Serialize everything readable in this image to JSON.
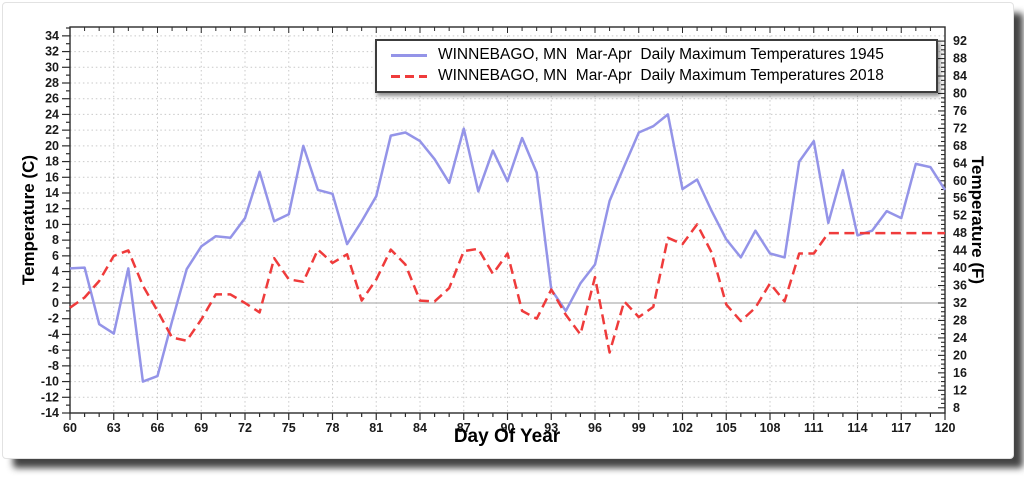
{
  "chart_data": {
    "type": "line",
    "title": "",
    "xlabel": "Day Of Year",
    "ylabel_left": "Temperature (C)",
    "ylabel_right": "Temperature (F)",
    "xlim": [
      60,
      120
    ],
    "ylim_c": [
      -14,
      35.1
    ],
    "x_ticks": [
      60,
      63,
      66,
      69,
      72,
      75,
      78,
      81,
      84,
      87,
      90,
      93,
      96,
      99,
      102,
      105,
      108,
      111,
      114,
      117,
      120
    ],
    "y_ticks_c": [
      -14,
      -12,
      -10,
      -8,
      -6,
      -4,
      -2,
      0,
      2,
      4,
      6,
      8,
      10,
      12,
      14,
      16,
      18,
      20,
      22,
      24,
      26,
      28,
      30,
      32,
      34
    ],
    "y_ticks_f": [
      8,
      12,
      16,
      20,
      24,
      28,
      32,
      36,
      40,
      44,
      48,
      52,
      56,
      60,
      64,
      68,
      72,
      76,
      80,
      84,
      88,
      92
    ],
    "grid": "dotted",
    "zero_line_c": 0,
    "legend_position": "top-center",
    "x": [
      60,
      61,
      62,
      63,
      64,
      65,
      66,
      67,
      68,
      69,
      70,
      71,
      72,
      73,
      74,
      75,
      76,
      77,
      78,
      79,
      80,
      81,
      82,
      83,
      84,
      85,
      86,
      87,
      88,
      89,
      90,
      91,
      92,
      93,
      94,
      95,
      96,
      97,
      98,
      99,
      100,
      101,
      102,
      103,
      104,
      105,
      106,
      107,
      108,
      109,
      110,
      111,
      112,
      113,
      114,
      115,
      116,
      117,
      118,
      119,
      120
    ],
    "series": [
      {
        "name": "WINNEBAGO, MN  Mar-Apr  Daily Maximum Temperatures 1945",
        "color": "#9494e8",
        "style": "solid",
        "values": [
          4.4,
          4.5,
          -2.7,
          -3.9,
          4.4,
          -10,
          -9.3,
          -2.3,
          4.3,
          7.2,
          8.5,
          8.3,
          10.8,
          16.7,
          10.4,
          11.3,
          20,
          14.4,
          13.9,
          7.5,
          10.4,
          13.6,
          21.3,
          21.7,
          20.6,
          18.3,
          15.3,
          22.2,
          14.2,
          19.4,
          15.5,
          21,
          16.6,
          1.7,
          -1,
          2.5,
          4.9,
          13,
          17.4,
          21.7,
          22.5,
          24,
          14.5,
          15.7,
          11.7,
          8.1,
          5.8,
          9.2,
          6.3,
          5.8,
          18,
          20.6,
          10.2,
          16.9,
          8.6,
          9.2,
          11.7,
          10.8,
          17.7,
          17.3,
          14.4
        ]
      },
      {
        "name": "WINNEBAGO, MN  Mar-Apr  Daily Maximum Temperatures 2018",
        "color": "#ef3b3b",
        "style": "dashed",
        "values": [
          -0.6,
          0.7,
          2.8,
          6,
          6.7,
          2.2,
          -1,
          -4.4,
          -4.8,
          -2.1,
          1.1,
          1.1,
          0,
          -1.2,
          5.7,
          3,
          2.7,
          6.8,
          5.1,
          6.2,
          0.3,
          3,
          6.8,
          4.9,
          0.3,
          0.2,
          1.9,
          6.6,
          6.9,
          3.7,
          6.3,
          -1,
          -2,
          1.7,
          -1.5,
          -4,
          3.3,
          -6.3,
          0.2,
          -1.8,
          -0.5,
          8.3,
          7.5,
          10,
          6.4,
          -0.2,
          -2.3,
          -0.6,
          2.5,
          0.2,
          6.3,
          6.3,
          8.9,
          8.9,
          8.9,
          8.9,
          8.9,
          8.9,
          8.9,
          8.9,
          8.9
        ]
      }
    ]
  },
  "style_colors": {
    "line_1945": "#9494e8",
    "line_2018": "#ef3b3b",
    "grid": "#c9c9c9",
    "zero_line": "#b0b0b0",
    "frame": "#2b2b2b",
    "tick_label": "#1a1a1a"
  }
}
